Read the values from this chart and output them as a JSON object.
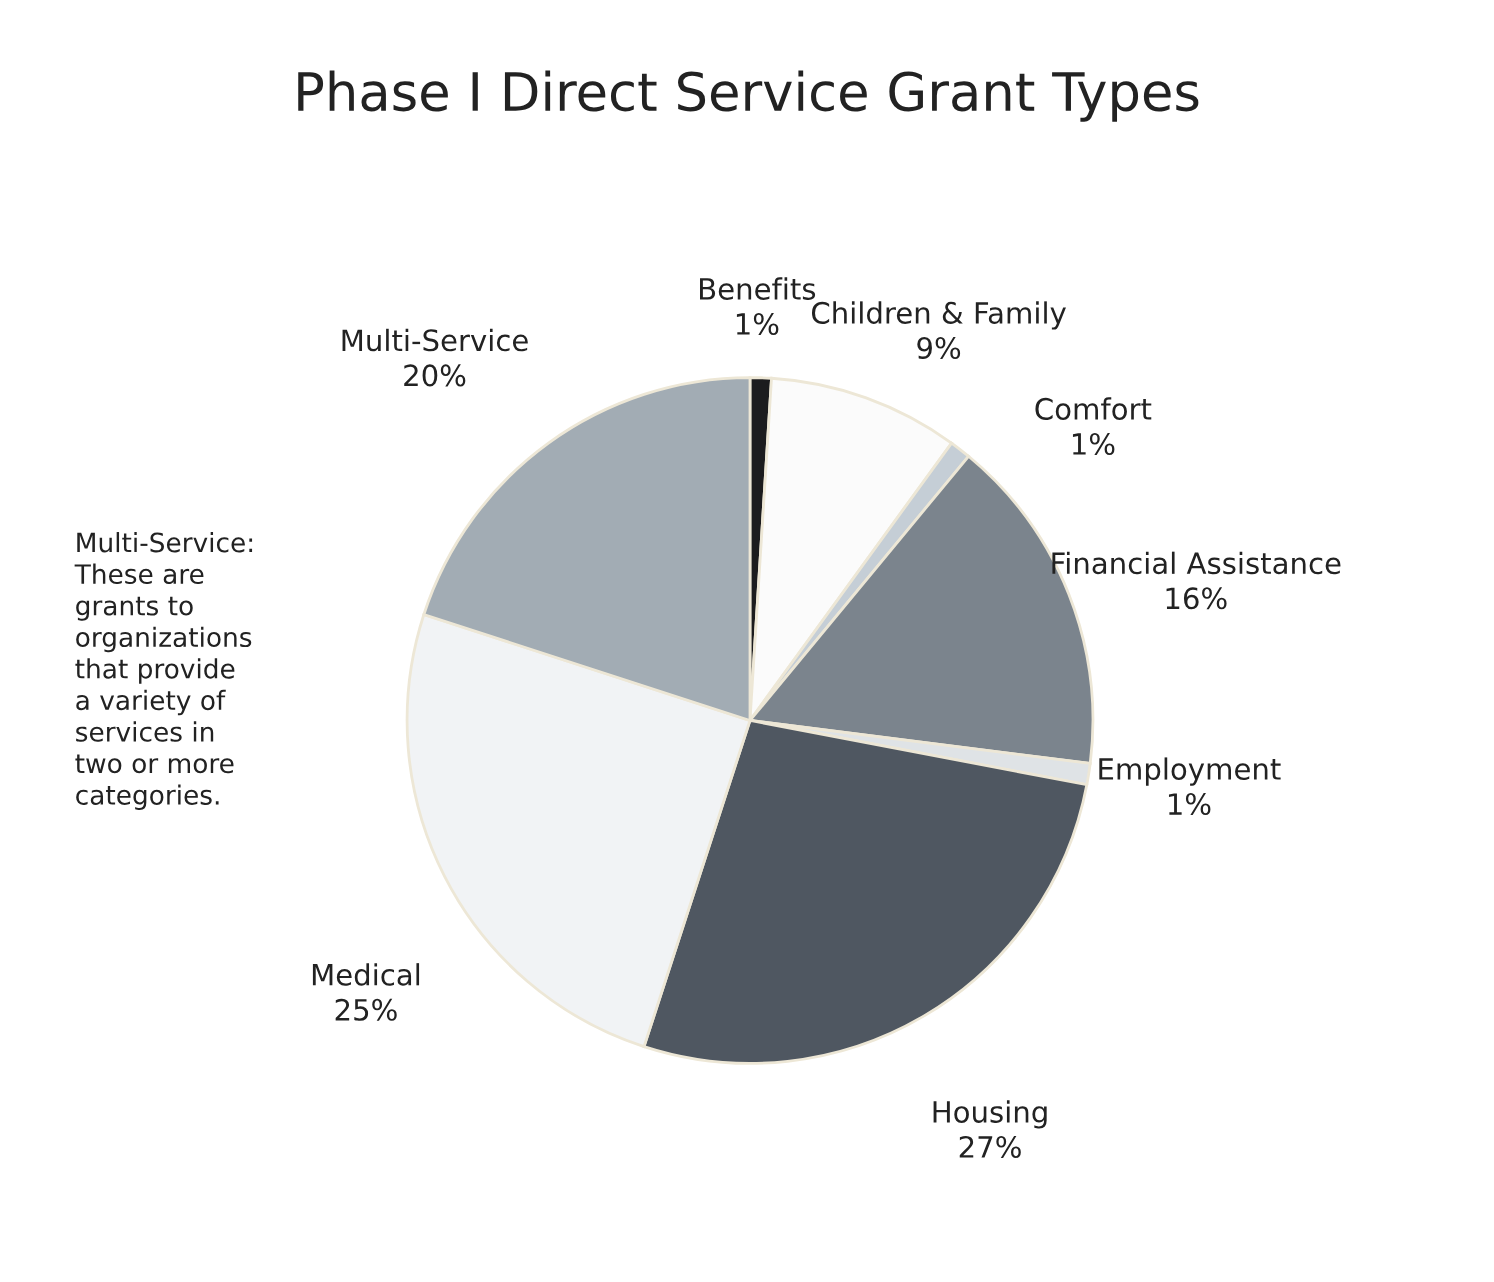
{
  "chart_data": {
    "type": "pie",
    "title": "Phase I Direct Service Grant Types",
    "categories": [
      "Benefits",
      "Children & Family",
      "Comfort",
      "Financial Assistance",
      "Employment",
      "Housing",
      "Medical",
      "Multi-Service"
    ],
    "values": [
      1,
      9,
      1,
      16,
      1,
      27,
      25,
      20
    ],
    "value_labels": [
      "1%",
      "9%",
      "1%",
      "16%",
      "1%",
      "27%",
      "25%",
      "20%"
    ],
    "colors": [
      "#1c1c1e",
      "#fbfbfb",
      "#c5ced6",
      "#7b848d",
      "#dfe3e6",
      "#4f5761",
      "#f1f3f5",
      "#a2acb4"
    ],
    "annotations": [
      "Multi-Service:\nThese are\ngrants to\norganizations\nthat provide\na variety of\nservices in\ntwo or more\ncategories."
    ]
  }
}
